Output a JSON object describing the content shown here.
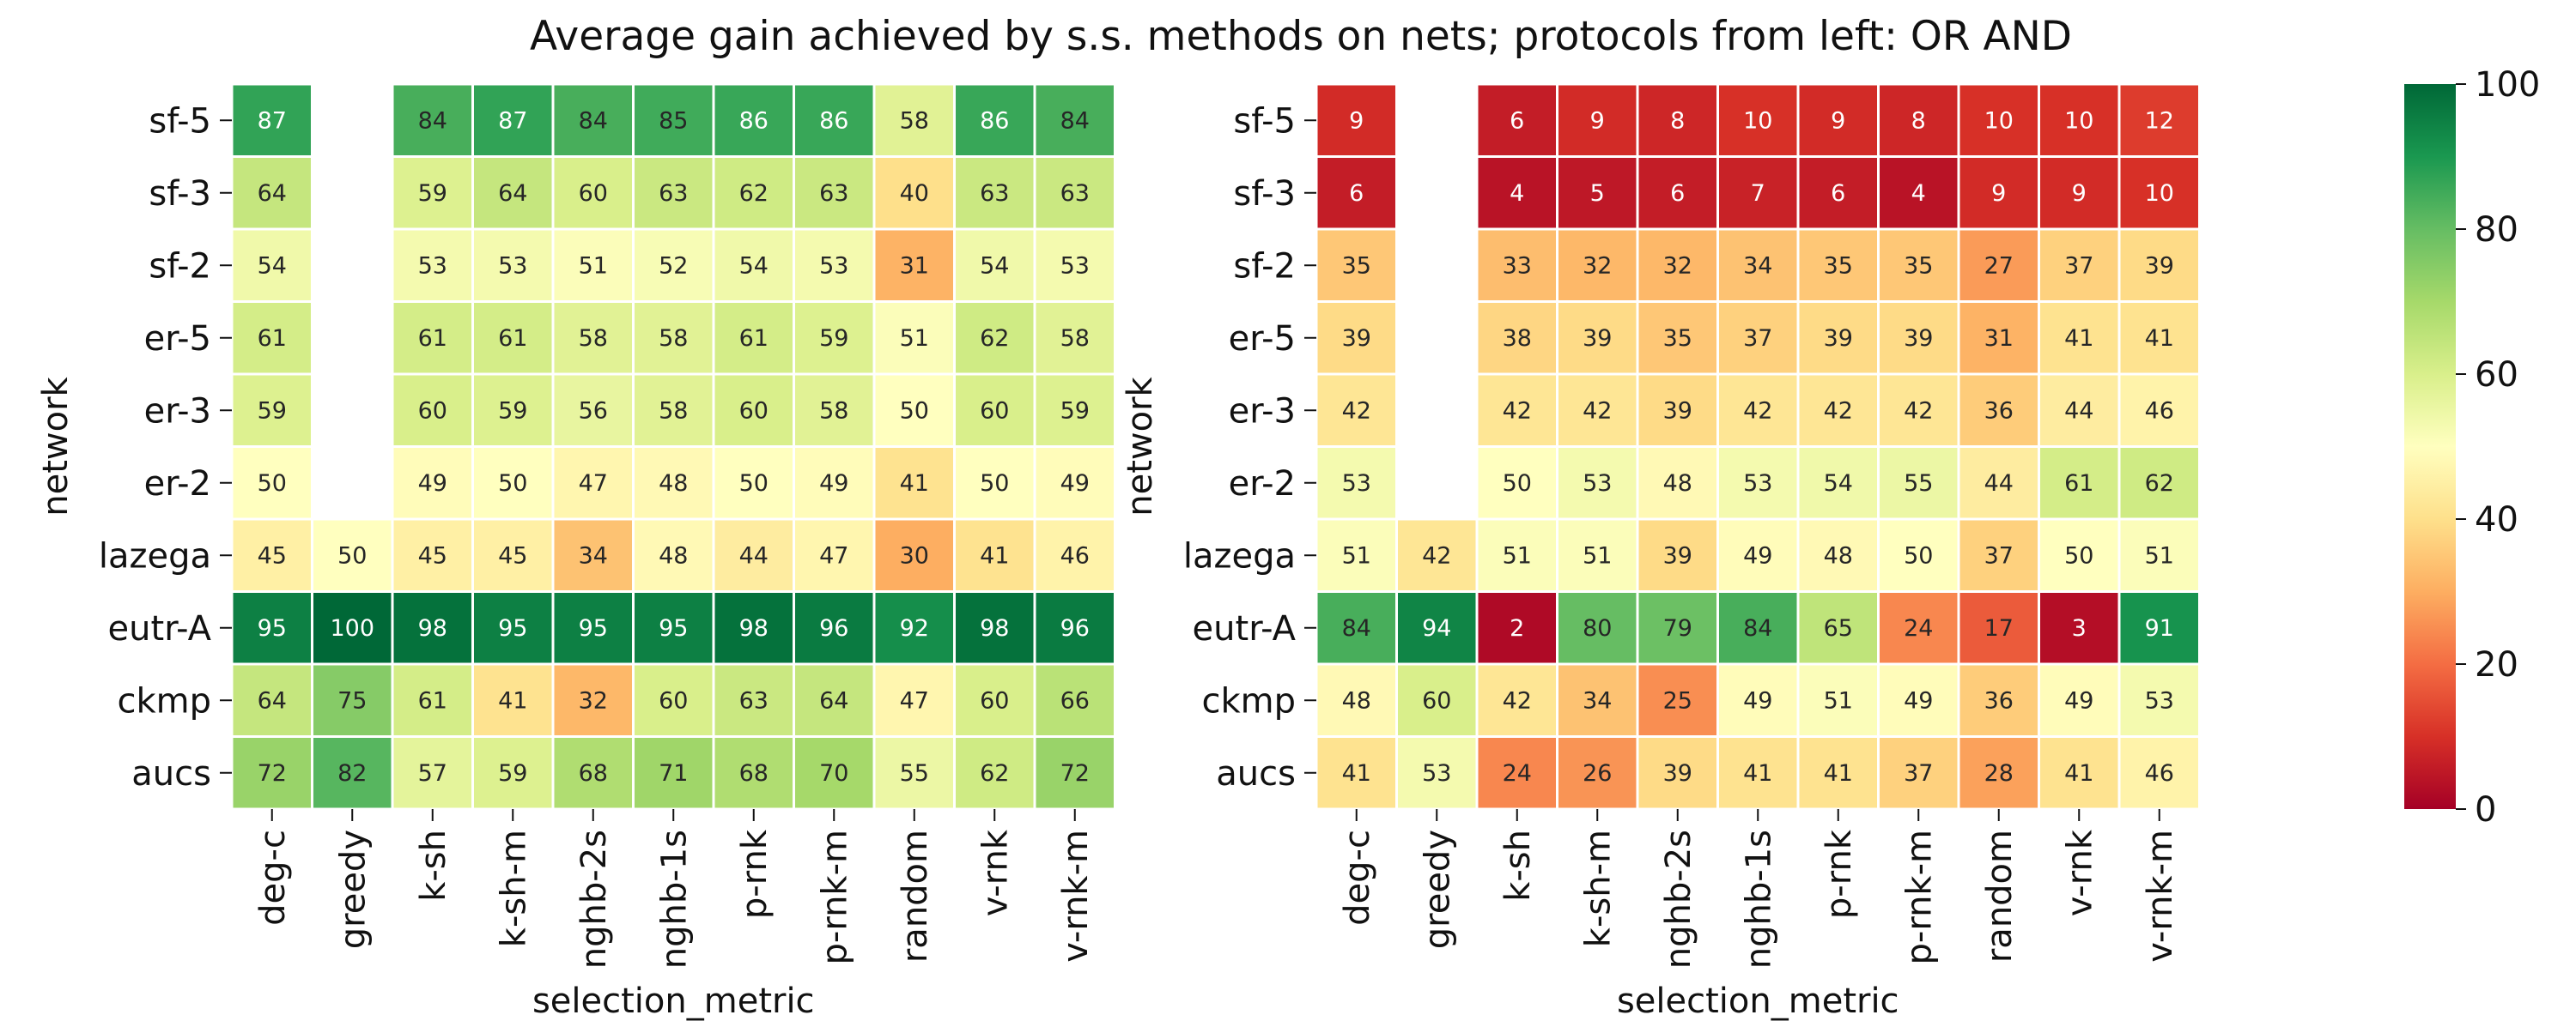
{
  "chart_data": {
    "type": "heatmap",
    "title": "Average gain achieved by s.s. methods on nets; protocols from left: OR AND",
    "xlabel": "selection_metric",
    "ylabel": "network",
    "rows": [
      "sf-5",
      "sf-3",
      "sf-2",
      "er-5",
      "er-3",
      "er-2",
      "lazega",
      "eutr-A",
      "ckmp",
      "aucs"
    ],
    "columns": [
      "deg-c",
      "greedy",
      "k-sh",
      "k-sh-m",
      "nghb-2s",
      "nghb-1s",
      "p-rnk",
      "p-rnk-m",
      "random",
      "v-rnk",
      "v-rnk-m"
    ],
    "colorbar": {
      "min": 0,
      "max": 100,
      "ticks": [
        "0",
        "20",
        "40",
        "60",
        "80",
        "100"
      ],
      "colormap": "RdYlGn"
    },
    "panels": [
      {
        "protocol": "OR",
        "values": [
          [
            87,
            null,
            84,
            87,
            84,
            85,
            86,
            86,
            58,
            86,
            84
          ],
          [
            64,
            null,
            59,
            64,
            60,
            63,
            62,
            63,
            40,
            63,
            63
          ],
          [
            54,
            null,
            53,
            53,
            51,
            52,
            54,
            53,
            31,
            54,
            53
          ],
          [
            61,
            null,
            61,
            61,
            58,
            58,
            61,
            59,
            51,
            62,
            58
          ],
          [
            59,
            null,
            60,
            59,
            56,
            58,
            60,
            58,
            50,
            60,
            59
          ],
          [
            50,
            null,
            49,
            50,
            47,
            48,
            50,
            49,
            41,
            50,
            49
          ],
          [
            45,
            50,
            45,
            45,
            34,
            48,
            44,
            47,
            30,
            41,
            46
          ],
          [
            95,
            100,
            98,
            95,
            95,
            95,
            98,
            96,
            92,
            98,
            96
          ],
          [
            64,
            75,
            61,
            41,
            32,
            60,
            63,
            64,
            47,
            60,
            66
          ],
          [
            72,
            82,
            57,
            59,
            68,
            71,
            68,
            70,
            55,
            62,
            72
          ]
        ]
      },
      {
        "protocol": "AND",
        "values": [
          [
            9,
            null,
            6,
            9,
            8,
            10,
            9,
            8,
            10,
            10,
            12
          ],
          [
            6,
            null,
            4,
            5,
            6,
            7,
            6,
            4,
            9,
            9,
            10
          ],
          [
            35,
            null,
            33,
            32,
            32,
            34,
            35,
            35,
            27,
            37,
            39
          ],
          [
            39,
            null,
            38,
            39,
            35,
            37,
            39,
            39,
            31,
            41,
            41
          ],
          [
            42,
            null,
            42,
            42,
            39,
            42,
            42,
            42,
            36,
            44,
            46
          ],
          [
            53,
            null,
            50,
            53,
            48,
            53,
            54,
            55,
            44,
            61,
            62
          ],
          [
            51,
            42,
            51,
            51,
            39,
            49,
            48,
            50,
            37,
            50,
            51
          ],
          [
            84,
            94,
            2,
            80,
            79,
            84,
            65,
            24,
            17,
            3,
            91
          ],
          [
            48,
            60,
            42,
            34,
            25,
            49,
            51,
            49,
            36,
            49,
            53
          ],
          [
            41,
            53,
            24,
            26,
            39,
            41,
            41,
            37,
            28,
            41,
            46
          ]
        ]
      }
    ]
  }
}
